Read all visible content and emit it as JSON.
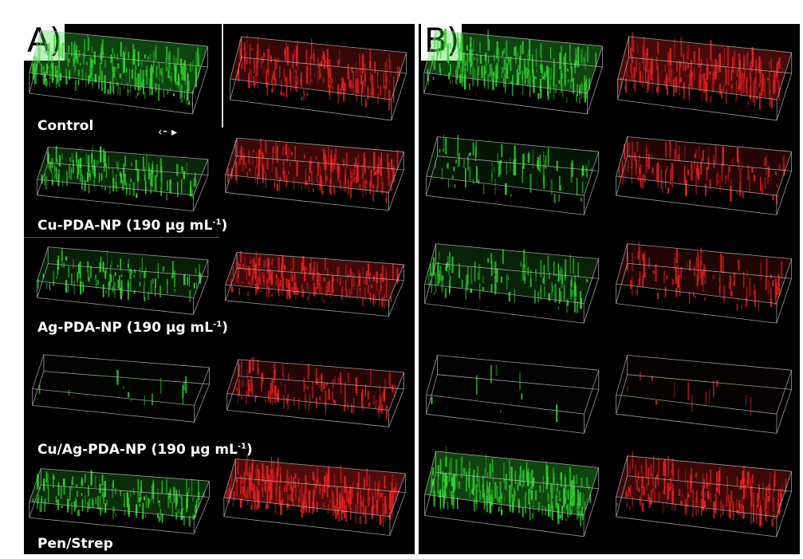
{
  "panels": [
    {
      "id": "a",
      "label": "A)",
      "rows": [
        {
          "caption": "Control",
          "unit_sup": "",
          "tiles": [
            {
              "channel": "green",
              "density": 0.9
            },
            {
              "channel": "red",
              "density": 0.7
            }
          ]
        },
        {
          "caption": "Cu-PDA-NP (190 µg mL",
          "unit_sup": "-1",
          "caption_close": ")",
          "tiles": [
            {
              "channel": "green",
              "density": 0.55
            },
            {
              "channel": "red",
              "density": 0.75
            }
          ]
        },
        {
          "caption": "Ag-PDA-NP (190 µg mL",
          "unit_sup": "-1",
          "caption_close": ")",
          "tiles": [
            {
              "channel": "green",
              "density": 0.4
            },
            {
              "channel": "red",
              "density": 0.8
            }
          ]
        },
        {
          "caption": "Cu/Ag-PDA-NP (190 µg mL",
          "unit_sup": "-1",
          "caption_close": ")",
          "tiles": [
            {
              "channel": "green",
              "density": 0.05
            },
            {
              "channel": "red",
              "density": 0.45
            }
          ]
        },
        {
          "caption": "Pen/Strep",
          "unit_sup": "",
          "tiles": [
            {
              "channel": "green",
              "density": 0.6
            },
            {
              "channel": "red",
              "density": 1.0
            }
          ]
        }
      ]
    },
    {
      "id": "b",
      "label": "B)",
      "rows": [
        {
          "tiles": [
            {
              "channel": "green",
              "density": 0.9
            },
            {
              "channel": "red",
              "density": 0.85
            }
          ]
        },
        {
          "tiles": [
            {
              "channel": "green",
              "density": 0.3
            },
            {
              "channel": "red",
              "density": 0.45
            }
          ]
        },
        {
          "tiles": [
            {
              "channel": "green",
              "density": 0.45
            },
            {
              "channel": "red",
              "density": 0.4
            }
          ]
        },
        {
          "tiles": [
            {
              "channel": "green",
              "density": 0.03
            },
            {
              "channel": "red",
              "density": 0.05
            }
          ]
        },
        {
          "tiles": [
            {
              "channel": "green",
              "density": 0.9
            },
            {
              "channel": "red",
              "density": 0.75
            }
          ]
        }
      ]
    }
  ],
  "colors": {
    "green": "#2fd42f",
    "red": "#e82020",
    "frame": "#bfbfbf",
    "background": "#000000"
  }
}
